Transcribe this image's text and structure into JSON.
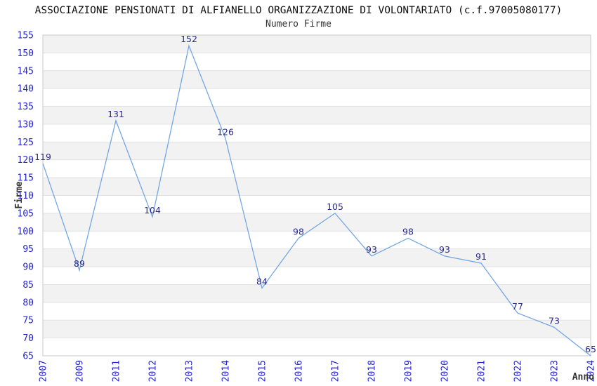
{
  "header": {
    "title": "ASSOCIAZIONE PENSIONATI DI ALFIANELLO ORGANIZZAZIONE DI VOLONTARIATO (c.f.97005080177)",
    "subtitle": "Numero Firme"
  },
  "chart_data": {
    "type": "line",
    "title": "ASSOCIAZIONE PENSIONATI DI ALFIANELLO ORGANIZZAZIONE DI VOLONTARIATO (c.f.97005080177)",
    "subtitle": "Numero Firme",
    "categories": [
      "2007",
      "2009",
      "2011",
      "2012",
      "2013",
      "2014",
      "2015",
      "2016",
      "2017",
      "2018",
      "2019",
      "2020",
      "2021",
      "2022",
      "2023",
      "2024"
    ],
    "series": [
      {
        "name": "Numero Firme",
        "values": [
          119,
          89,
          131,
          104,
          152,
          126,
          84,
          98,
          105,
          93,
          98,
          93,
          91,
          77,
          73,
          65
        ]
      }
    ],
    "xlabel": "Anno",
    "ylabel": "Firme",
    "ylim": [
      65,
      155
    ],
    "ytick_step": 5,
    "yticks": [
      65,
      70,
      75,
      80,
      85,
      90,
      95,
      100,
      105,
      110,
      115,
      120,
      125,
      130,
      135,
      140,
      145,
      150,
      155
    ],
    "grid": "horizontal gridlines every 5 units with alternating shaded bands",
    "legend_position": "none",
    "data_labels_visible": true,
    "marker": "none",
    "colors": {
      "line": "#74a7e4",
      "tick_label": "#2424cc",
      "data_label": "#29298a",
      "band_fill": "#f2f2f2",
      "grid_line": "#e2e2e2",
      "plot_border": "#c9c9c9",
      "plot_background": "#ffffff",
      "title": "#111111",
      "axis_title": "#333333"
    }
  }
}
